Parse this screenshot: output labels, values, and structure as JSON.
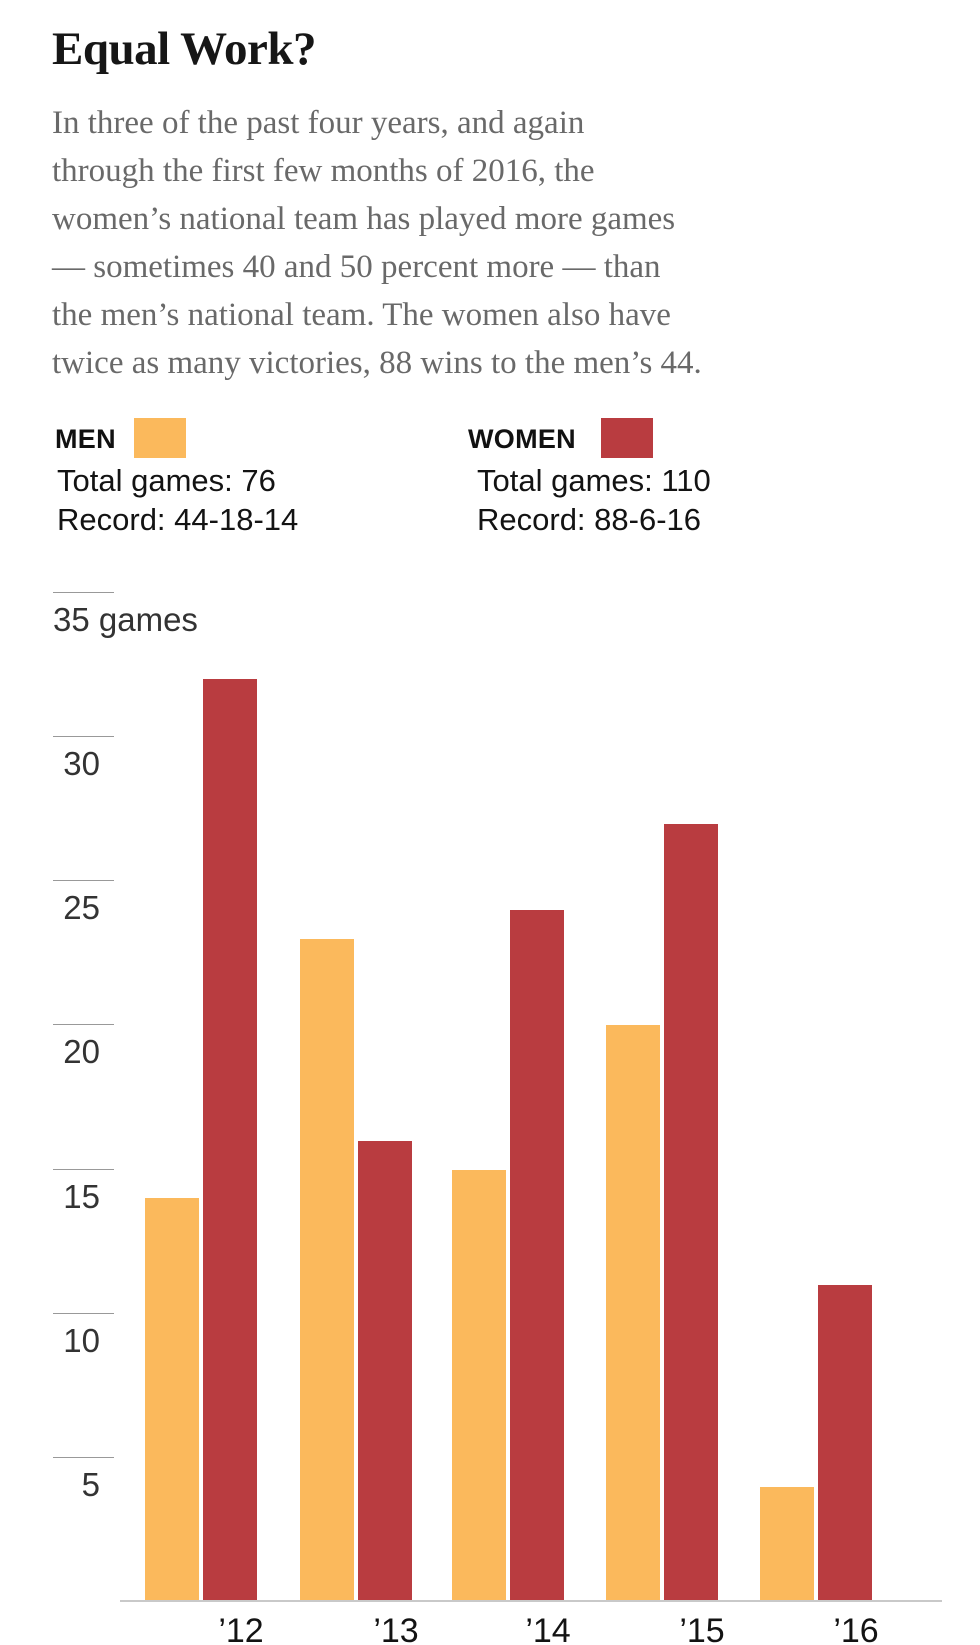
{
  "title": "Equal Work?",
  "intro": "In three of the past four years, and again\nthrough the first few months of 2016, the\nwomen’s national team has played more games\n— sometimes 40 and 50 percent more — than\nthe men’s national team. The women also have\ntwice as many victories, 88 wins to the men’s 44.",
  "legend": {
    "men": {
      "label": "MEN",
      "total": "Total games: 76",
      "record": "Record: 44-18-14"
    },
    "women": {
      "label": "WOMEN",
      "total": "Total games: 110",
      "record": "Record: 88-6-16"
    }
  },
  "colors": {
    "men": "#FBB95C",
    "women": "#B93C40",
    "axis": "#C9C9C9",
    "tick": "#999999",
    "body_text": "#696969",
    "heading_text": "#161616"
  },
  "chart_data": {
    "type": "bar",
    "title": "Games played per year by U.S. national soccer teams",
    "categories": [
      "’12",
      "’13",
      "’14",
      "’15",
      "’16"
    ],
    "series": [
      {
        "name": "MEN",
        "color": "#FBB95C",
        "values": [
          14,
          23,
          15,
          20,
          4
        ]
      },
      {
        "name": "WOMEN",
        "color": "#B93C40",
        "values": [
          32,
          16,
          24,
          27,
          11
        ]
      }
    ],
    "xlabel": "",
    "ylabel": "games",
    "ylim": [
      0,
      35
    ],
    "yticks": [
      35,
      30,
      25,
      20,
      15,
      10,
      5
    ],
    "ytick_labels": [
      "35 games",
      "30",
      "25",
      "20",
      "15",
      "10",
      "5"
    ],
    "grid": "off",
    "legend_position": "top-left"
  }
}
